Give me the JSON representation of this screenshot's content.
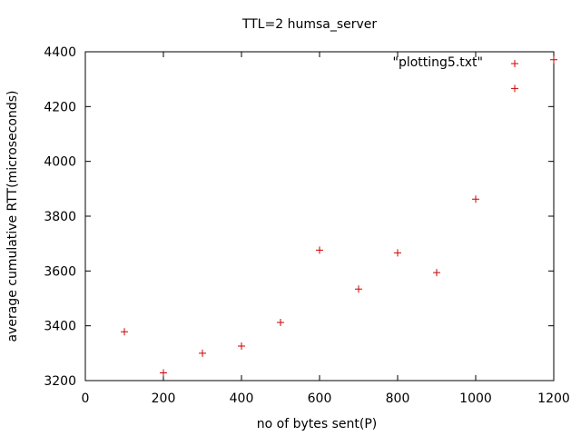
{
  "chart_data": {
    "type": "scatter",
    "title": "TTL=2 humsa_server",
    "xlabel": "no of bytes sent(P)",
    "ylabel": "average cumulative RTT(microseconds)",
    "xlim": [
      0,
      1200
    ],
    "ylim": [
      3200,
      4400
    ],
    "xticks": [
      0,
      200,
      400,
      600,
      800,
      1000,
      1200
    ],
    "yticks": [
      3200,
      3400,
      3600,
      3800,
      4000,
      4200,
      4400
    ],
    "legend": "top-right",
    "grid": false,
    "marker_color": "#cc0000",
    "series": [
      {
        "name": "\"plotting5.txt\"",
        "x": [
          100,
          200,
          300,
          400,
          500,
          600,
          700,
          800,
          900,
          1000,
          1100,
          1200
        ],
        "y": [
          3378,
          3228,
          3300,
          3326,
          3412,
          3676,
          3534,
          3666,
          3594,
          3862,
          4266,
          4371
        ]
      }
    ]
  }
}
